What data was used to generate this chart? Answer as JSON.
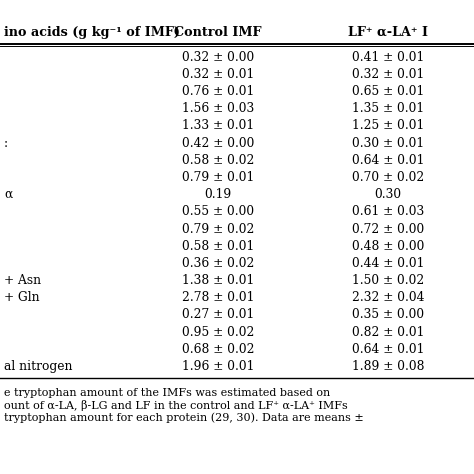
{
  "col_header": [
    "ino acids (g kg⁻¹ of IMF)",
    "Control IMF",
    "LF⁺ α-LA⁺ I"
  ],
  "rows": [
    [
      "",
      "0.32 ± 0.00",
      "0.41 ± 0.01"
    ],
    [
      "",
      "0.32 ± 0.01",
      "0.32 ± 0.01"
    ],
    [
      "",
      "0.76 ± 0.01",
      "0.65 ± 0.01"
    ],
    [
      "",
      "1.56 ± 0.03",
      "1.35 ± 0.01"
    ],
    [
      "",
      "1.33 ± 0.01",
      "1.25 ± 0.01"
    ],
    [
      ":",
      "0.42 ± 0.00",
      "0.30 ± 0.01"
    ],
    [
      "",
      "0.58 ± 0.02",
      "0.64 ± 0.01"
    ],
    [
      "",
      "0.79 ± 0.01",
      "0.70 ± 0.02"
    ],
    [
      "α",
      "0.19",
      "0.30"
    ],
    [
      "",
      "0.55 ± 0.00",
      "0.61 ± 0.03"
    ],
    [
      "",
      "0.79 ± 0.02",
      "0.72 ± 0.00"
    ],
    [
      "",
      "0.58 ± 0.01",
      "0.48 ± 0.00"
    ],
    [
      "",
      "0.36 ± 0.02",
      "0.44 ± 0.01"
    ],
    [
      "+ Asn",
      "1.38 ± 0.01",
      "1.50 ± 0.02"
    ],
    [
      "+ Gln",
      "2.78 ± 0.01",
      "2.32 ± 0.04"
    ],
    [
      "",
      "0.27 ± 0.01",
      "0.35 ± 0.00"
    ],
    [
      "",
      "0.95 ± 0.02",
      "0.82 ± 0.01"
    ],
    [
      "",
      "0.68 ± 0.02",
      "0.64 ± 0.01"
    ],
    [
      "al nitrogen",
      "1.96 ± 0.01",
      "1.89 ± 0.08"
    ]
  ],
  "footnote_lines": [
    "e tryptophan amount of the IMFs was estimated based on",
    "ount of α-LA, β-LG and LF in the control and LF⁺ α-LA⁺ IMFs",
    "tryptophan amount for each protein (29, 30). Data are means ±"
  ],
  "bg_color": "#ffffff",
  "text_color": "#000000",
  "header_line_color": "#000000"
}
